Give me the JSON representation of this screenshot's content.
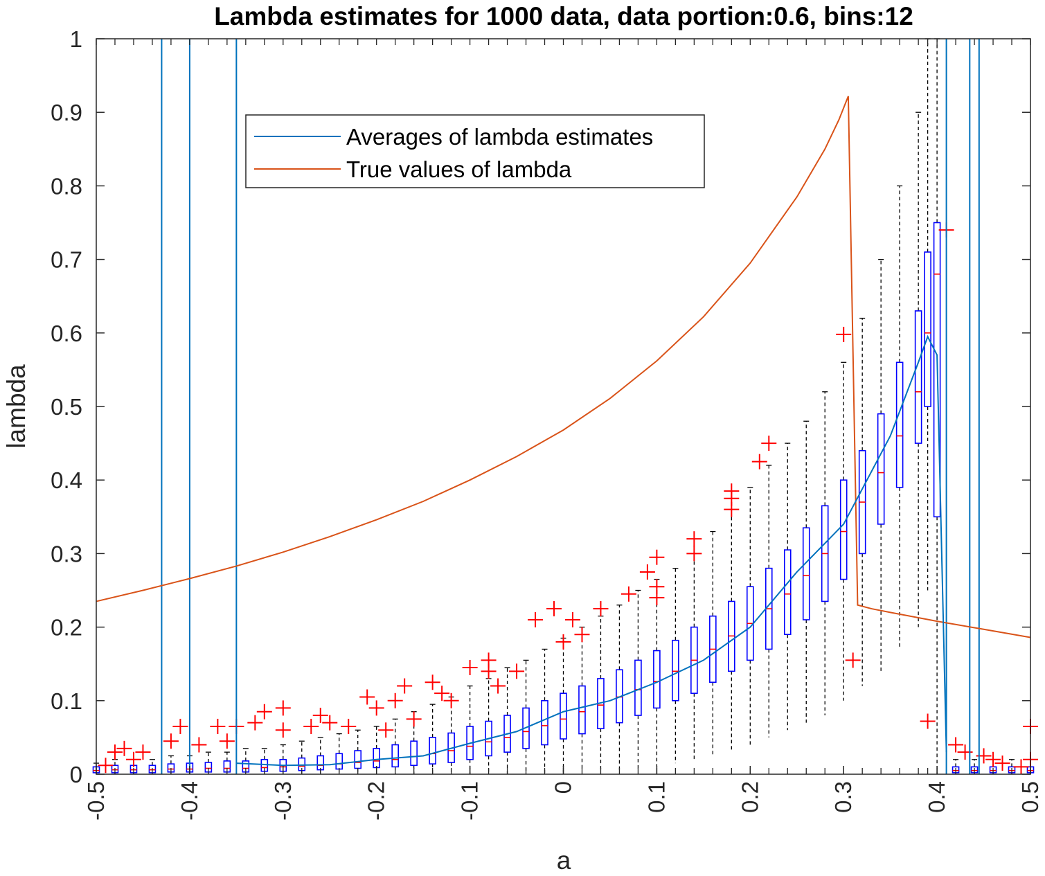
{
  "chart_data": {
    "type": "box",
    "title": "Lambda estimates for 1000 data, data portion:0.6, bins:12",
    "xlabel": "a",
    "ylabel": "lambda",
    "xlim": [
      -0.5,
      0.5
    ],
    "ylim": [
      0,
      1
    ],
    "xticks": [
      -0.5,
      -0.4,
      -0.3,
      -0.2,
      -0.1,
      0,
      0.1,
      0.2,
      0.3,
      0.4,
      0.5
    ],
    "xtick_labels": [
      "-0.5",
      "-0.4",
      "-0.3",
      "-0.2",
      "-0.1",
      "0",
      "0.1",
      "0.2",
      "0.3",
      "0.4",
      "0.5"
    ],
    "yticks": [
      0,
      0.1,
      0.2,
      0.3,
      0.4,
      0.5,
      0.6,
      0.7,
      0.8,
      0.9,
      1
    ],
    "ytick_labels": [
      "0",
      "0.1",
      "0.2",
      "0.3",
      "0.4",
      "0.5",
      "0.6",
      "0.7",
      "0.8",
      "0.9",
      "1"
    ],
    "grid": false,
    "legend": {
      "placement": "top-left-center",
      "entries": [
        "Averages of lambda estimates",
        "True values of lambda"
      ]
    },
    "colors": {
      "average": "#0072BD",
      "true": "#D95319",
      "box": "#0000FF",
      "median": "#FF0000",
      "outlier": "#FF0000",
      "whisker": "#000000",
      "vline": "#0072BD"
    },
    "vertical_lines": [
      -0.43,
      -0.4,
      -0.35,
      0.41,
      0.435,
      0.445
    ],
    "series": [
      {
        "name": "True values of lambda",
        "x": [
          -0.5,
          -0.45,
          -0.4,
          -0.35,
          -0.3,
          -0.25,
          -0.2,
          -0.15,
          -0.1,
          -0.05,
          0,
          0.05,
          0.1,
          0.15,
          0.2,
          0.25,
          0.28,
          0.295,
          0.305,
          0.315,
          0.33,
          0.35,
          0.4,
          0.45,
          0.5
        ],
        "y": [
          0.235,
          0.25,
          0.266,
          0.283,
          0.302,
          0.323,
          0.346,
          0.371,
          0.4,
          0.432,
          0.468,
          0.511,
          0.562,
          0.622,
          0.695,
          0.785,
          0.85,
          0.89,
          0.922,
          0.23,
          0.225,
          0.22,
          0.208,
          0.197,
          0.186
        ]
      },
      {
        "name": "Averages of lambda estimates",
        "x": [
          -0.35,
          -0.3,
          -0.25,
          -0.2,
          -0.15,
          -0.1,
          -0.05,
          0,
          0.05,
          0.1,
          0.15,
          0.2,
          0.25,
          0.3,
          0.35,
          0.38,
          0.39,
          0.4,
          0.41
        ],
        "y": [
          0.015,
          0.012,
          0.013,
          0.02,
          0.025,
          0.042,
          0.058,
          0.085,
          0.1,
          0.125,
          0.155,
          0.2,
          0.275,
          0.34,
          0.46,
          0.56,
          0.595,
          0.57,
          0.03
        ]
      }
    ],
    "boxes": [
      {
        "x": -0.5,
        "q1": 0.002,
        "median": 0.005,
        "q3": 0.01,
        "wlo": 0,
        "whi": 0.015
      },
      {
        "x": -0.48,
        "q1": 0.002,
        "median": 0.006,
        "q3": 0.012,
        "wlo": 0,
        "whi": 0.02
      },
      {
        "x": -0.46,
        "q1": 0.002,
        "median": 0.006,
        "q3": 0.012,
        "wlo": 0,
        "whi": 0.02
      },
      {
        "x": -0.44,
        "q1": 0.002,
        "median": 0.006,
        "q3": 0.012,
        "wlo": 0,
        "whi": 0.02
      },
      {
        "x": -0.42,
        "q1": 0.003,
        "median": 0.007,
        "q3": 0.014,
        "wlo": 0,
        "whi": 0.025
      },
      {
        "x": -0.4,
        "q1": 0.003,
        "median": 0.007,
        "q3": 0.015,
        "wlo": 0,
        "whi": 0.025
      },
      {
        "x": -0.38,
        "q1": 0.003,
        "median": 0.008,
        "q3": 0.016,
        "wlo": 0,
        "whi": 0.03
      },
      {
        "x": -0.36,
        "q1": 0.003,
        "median": 0.008,
        "q3": 0.018,
        "wlo": 0,
        "whi": 0.03
      },
      {
        "x": -0.34,
        "q1": 0.003,
        "median": 0.008,
        "q3": 0.018,
        "wlo": 0,
        "whi": 0.035
      },
      {
        "x": -0.32,
        "q1": 0.004,
        "median": 0.009,
        "q3": 0.02,
        "wlo": 0,
        "whi": 0.035
      },
      {
        "x": -0.3,
        "q1": 0.004,
        "median": 0.01,
        "q3": 0.02,
        "wlo": 0,
        "whi": 0.04
      },
      {
        "x": -0.28,
        "q1": 0.005,
        "median": 0.011,
        "q3": 0.022,
        "wlo": 0,
        "whi": 0.045
      },
      {
        "x": -0.26,
        "q1": 0.006,
        "median": 0.012,
        "q3": 0.025,
        "wlo": 0,
        "whi": 0.05
      },
      {
        "x": -0.24,
        "q1": 0.007,
        "median": 0.014,
        "q3": 0.028,
        "wlo": 0,
        "whi": 0.055
      },
      {
        "x": -0.22,
        "q1": 0.008,
        "median": 0.016,
        "q3": 0.032,
        "wlo": 0,
        "whi": 0.06
      },
      {
        "x": -0.2,
        "q1": 0.009,
        "median": 0.018,
        "q3": 0.035,
        "wlo": 0,
        "whi": 0.065
      },
      {
        "x": -0.18,
        "q1": 0.01,
        "median": 0.02,
        "q3": 0.04,
        "wlo": 0,
        "whi": 0.075
      },
      {
        "x": -0.16,
        "q1": 0.012,
        "median": 0.024,
        "q3": 0.045,
        "wlo": 0,
        "whi": 0.085
      },
      {
        "x": -0.14,
        "q1": 0.014,
        "median": 0.028,
        "q3": 0.05,
        "wlo": 0,
        "whi": 0.095
      },
      {
        "x": -0.12,
        "q1": 0.016,
        "median": 0.032,
        "q3": 0.056,
        "wlo": 0,
        "whi": 0.105
      },
      {
        "x": -0.1,
        "q1": 0.02,
        "median": 0.038,
        "q3": 0.065,
        "wlo": 0,
        "whi": 0.12
      },
      {
        "x": -0.08,
        "q1": 0.025,
        "median": 0.044,
        "q3": 0.072,
        "wlo": 0,
        "whi": 0.13
      },
      {
        "x": -0.06,
        "q1": 0.03,
        "median": 0.05,
        "q3": 0.08,
        "wlo": 0,
        "whi": 0.145
      },
      {
        "x": -0.04,
        "q1": 0.035,
        "median": 0.058,
        "q3": 0.09,
        "wlo": 0.002,
        "whi": 0.155
      },
      {
        "x": -0.02,
        "q1": 0.04,
        "median": 0.066,
        "q3": 0.1,
        "wlo": 0.002,
        "whi": 0.17
      },
      {
        "x": 0,
        "q1": 0.048,
        "median": 0.075,
        "q3": 0.11,
        "wlo": 0.003,
        "whi": 0.185
      },
      {
        "x": 0.02,
        "q1": 0.055,
        "median": 0.085,
        "q3": 0.12,
        "wlo": 0.004,
        "whi": 0.2
      },
      {
        "x": 0.04,
        "q1": 0.062,
        "median": 0.094,
        "q3": 0.13,
        "wlo": 0.005,
        "whi": 0.215
      },
      {
        "x": 0.06,
        "q1": 0.07,
        "median": 0.105,
        "q3": 0.142,
        "wlo": 0.006,
        "whi": 0.23
      },
      {
        "x": 0.08,
        "q1": 0.08,
        "median": 0.115,
        "q3": 0.155,
        "wlo": 0.008,
        "whi": 0.25
      },
      {
        "x": 0.1,
        "q1": 0.09,
        "median": 0.126,
        "q3": 0.168,
        "wlo": 0.01,
        "whi": 0.265
      },
      {
        "x": 0.12,
        "q1": 0.1,
        "median": 0.14,
        "q3": 0.182,
        "wlo": 0.015,
        "whi": 0.28
      },
      {
        "x": 0.14,
        "q1": 0.11,
        "median": 0.155,
        "q3": 0.2,
        "wlo": 0.02,
        "whi": 0.3
      },
      {
        "x": 0.16,
        "q1": 0.125,
        "median": 0.17,
        "q3": 0.215,
        "wlo": 0.025,
        "whi": 0.33
      },
      {
        "x": 0.18,
        "q1": 0.14,
        "median": 0.188,
        "q3": 0.235,
        "wlo": 0.03,
        "whi": 0.36
      },
      {
        "x": 0.2,
        "q1": 0.155,
        "median": 0.205,
        "q3": 0.255,
        "wlo": 0.04,
        "whi": 0.39
      },
      {
        "x": 0.22,
        "q1": 0.17,
        "median": 0.225,
        "q3": 0.28,
        "wlo": 0.05,
        "whi": 0.42
      },
      {
        "x": 0.24,
        "q1": 0.19,
        "median": 0.245,
        "q3": 0.305,
        "wlo": 0.06,
        "whi": 0.45
      },
      {
        "x": 0.26,
        "q1": 0.21,
        "median": 0.27,
        "q3": 0.335,
        "wlo": 0.07,
        "whi": 0.48
      },
      {
        "x": 0.28,
        "q1": 0.235,
        "median": 0.3,
        "q3": 0.365,
        "wlo": 0.08,
        "whi": 0.52
      },
      {
        "x": 0.3,
        "q1": 0.265,
        "median": 0.33,
        "q3": 0.4,
        "wlo": 0.1,
        "whi": 0.56
      },
      {
        "x": 0.32,
        "q1": 0.3,
        "median": 0.37,
        "q3": 0.44,
        "wlo": 0.12,
        "whi": 0.62
      },
      {
        "x": 0.34,
        "q1": 0.34,
        "median": 0.41,
        "q3": 0.49,
        "wlo": 0.14,
        "whi": 0.7
      },
      {
        "x": 0.36,
        "q1": 0.39,
        "median": 0.46,
        "q3": 0.56,
        "wlo": 0.17,
        "whi": 0.8
      },
      {
        "x": 0.38,
        "q1": 0.45,
        "median": 0.52,
        "q3": 0.63,
        "wlo": 0.2,
        "whi": 0.9
      },
      {
        "x": 0.39,
        "q1": 0.5,
        "median": 0.6,
        "q3": 0.71,
        "wlo": 0.25,
        "whi": 1.0
      },
      {
        "x": 0.4,
        "q1": 0.35,
        "median": 0.68,
        "q3": 0.75,
        "wlo": 0,
        "whi": 1.0
      },
      {
        "x": 0.42,
        "q1": 0.002,
        "median": 0.005,
        "q3": 0.01,
        "wlo": 0,
        "whi": 0.02
      },
      {
        "x": 0.44,
        "q1": 0.002,
        "median": 0.005,
        "q3": 0.01,
        "wlo": 0,
        "whi": 0.02
      },
      {
        "x": 0.46,
        "q1": 0.002,
        "median": 0.005,
        "q3": 0.01,
        "wlo": 0,
        "whi": 0.02
      },
      {
        "x": 0.48,
        "q1": 0.002,
        "median": 0.005,
        "q3": 0.01,
        "wlo": 0,
        "whi": 0.02
      },
      {
        "x": 0.5,
        "q1": 0.002,
        "median": 0.005,
        "q3": 0.01,
        "wlo": 0,
        "whi": 0.02
      }
    ],
    "outliers": [
      [
        -0.49,
        0.012
      ],
      [
        -0.48,
        0.03
      ],
      [
        -0.47,
        0.035
      ],
      [
        -0.46,
        0.02
      ],
      [
        -0.45,
        0.03
      ],
      [
        -0.42,
        0.045
      ],
      [
        -0.41,
        0.065
      ],
      [
        -0.39,
        0.04
      ],
      [
        -0.37,
        0.065
      ],
      [
        -0.36,
        0.045
      ],
      [
        -0.35,
        0.065
      ],
      [
        -0.33,
        0.07
      ],
      [
        -0.32,
        0.085
      ],
      [
        -0.3,
        0.09
      ],
      [
        -0.3,
        0.06
      ],
      [
        -0.27,
        0.065
      ],
      [
        -0.26,
        0.08
      ],
      [
        -0.25,
        0.07
      ],
      [
        -0.23,
        0.065
      ],
      [
        -0.21,
        0.105
      ],
      [
        -0.2,
        0.09
      ],
      [
        -0.19,
        0.06
      ],
      [
        -0.18,
        0.1
      ],
      [
        -0.17,
        0.12
      ],
      [
        -0.16,
        0.075
      ],
      [
        -0.14,
        0.125
      ],
      [
        -0.13,
        0.11
      ],
      [
        -0.12,
        0.1
      ],
      [
        -0.1,
        0.145
      ],
      [
        -0.08,
        0.155
      ],
      [
        -0.08,
        0.14
      ],
      [
        -0.07,
        0.12
      ],
      [
        -0.05,
        0.14
      ],
      [
        -0.03,
        0.21
      ],
      [
        -0.01,
        0.225
      ],
      [
        0.0,
        0.18
      ],
      [
        0.01,
        0.21
      ],
      [
        0.02,
        0.19
      ],
      [
        0.04,
        0.225
      ],
      [
        0.07,
        0.245
      ],
      [
        0.09,
        0.275
      ],
      [
        0.1,
        0.295
      ],
      [
        0.1,
        0.255
      ],
      [
        0.1,
        0.24
      ],
      [
        0.14,
        0.32
      ],
      [
        0.14,
        0.3
      ],
      [
        0.18,
        0.385
      ],
      [
        0.18,
        0.375
      ],
      [
        0.18,
        0.36
      ],
      [
        0.21,
        0.425
      ],
      [
        0.22,
        0.45
      ],
      [
        0.3,
        0.598
      ],
      [
        0.31,
        0.155
      ],
      [
        0.39,
        0.072
      ],
      [
        0.41,
        0.74
      ],
      [
        0.42,
        0.04
      ],
      [
        0.43,
        0.03
      ],
      [
        0.45,
        0.025
      ],
      [
        0.46,
        0.02
      ],
      [
        0.47,
        0.015
      ],
      [
        0.49,
        0.01
      ],
      [
        0.5,
        0.065
      ],
      [
        0.5,
        0.02
      ]
    ]
  }
}
